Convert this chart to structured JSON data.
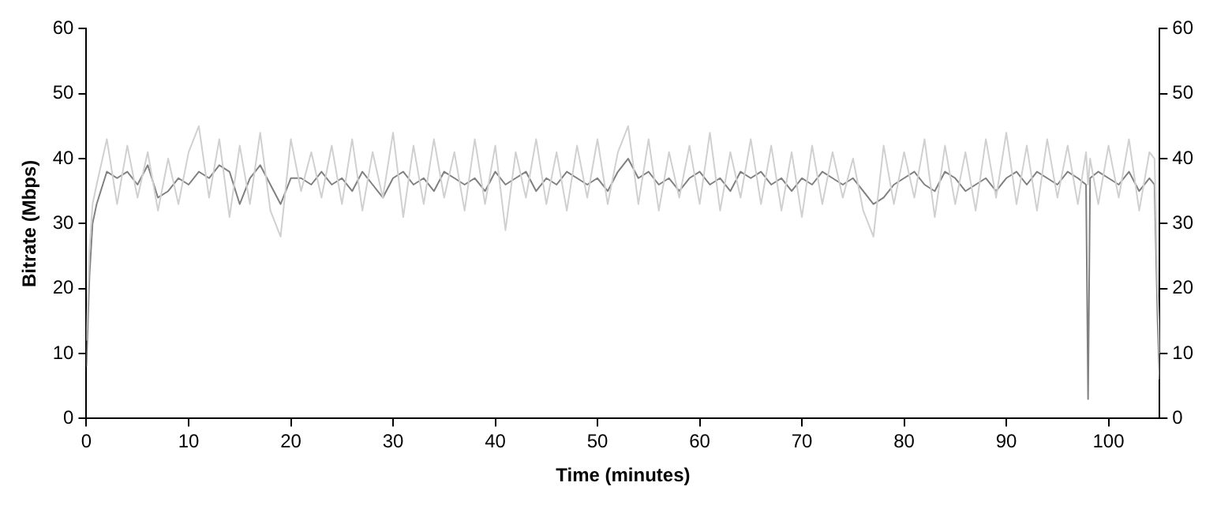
{
  "chart_data": {
    "type": "line",
    "xlabel": "Time (minutes)",
    "ylabel": "Bitrate (Mbps)",
    "x": [
      0,
      0.3,
      0.6,
      1,
      2,
      3,
      4,
      5,
      6,
      7,
      8,
      9,
      10,
      11,
      12,
      13,
      14,
      15,
      16,
      17,
      18,
      19,
      20,
      21,
      22,
      23,
      24,
      25,
      26,
      27,
      28,
      29,
      30,
      31,
      32,
      33,
      34,
      35,
      36,
      37,
      38,
      39,
      40,
      41,
      42,
      43,
      44,
      45,
      46,
      47,
      48,
      49,
      50,
      51,
      52,
      53,
      54,
      55,
      56,
      57,
      58,
      59,
      60,
      61,
      62,
      63,
      64,
      65,
      66,
      67,
      68,
      69,
      70,
      71,
      72,
      73,
      74,
      75,
      76,
      77,
      78,
      79,
      80,
      81,
      82,
      83,
      84,
      85,
      86,
      87,
      88,
      89,
      90,
      91,
      92,
      93,
      94,
      95,
      96,
      97,
      97.8,
      98,
      98.2,
      99,
      100,
      101,
      102,
      103,
      104,
      104.5,
      104.8,
      105
    ],
    "series": [
      {
        "color": "#d0d0d0",
        "values": [
          12,
          26,
          33,
          36,
          43,
          33,
          42,
          34,
          41,
          32,
          40,
          33,
          41,
          45,
          34,
          43,
          31,
          42,
          33,
          44,
          32,
          28,
          43,
          35,
          41,
          34,
          42,
          33,
          43,
          32,
          41,
          34,
          44,
          31,
          42,
          33,
          43,
          34,
          41,
          32,
          43,
          33,
          42,
          29,
          41,
          34,
          43,
          33,
          41,
          32,
          42,
          34,
          43,
          33,
          41,
          45,
          33,
          43,
          32,
          41,
          34,
          42,
          33,
          44,
          32,
          41,
          34,
          43,
          33,
          42,
          32,
          41,
          31,
          42,
          33,
          41,
          34,
          40,
          32,
          28,
          42,
          33,
          41,
          34,
          43,
          31,
          42,
          33,
          41,
          32,
          43,
          34,
          44,
          33,
          42,
          32,
          43,
          34,
          42,
          33,
          41,
          36,
          40,
          33,
          42,
          34,
          43,
          32,
          41,
          40,
          20,
          10
        ]
      },
      {
        "color": "#808080",
        "values": [
          8,
          22,
          30,
          33,
          38,
          37,
          38,
          36,
          39,
          34,
          35,
          37,
          36,
          38,
          37,
          39,
          38,
          33,
          37,
          39,
          36,
          33,
          37,
          37,
          36,
          38,
          36,
          37,
          35,
          38,
          36,
          34,
          37,
          38,
          36,
          37,
          35,
          38,
          37,
          36,
          37,
          35,
          38,
          36,
          37,
          38,
          35,
          37,
          36,
          38,
          37,
          36,
          37,
          35,
          38,
          40,
          37,
          38,
          36,
          37,
          35,
          37,
          38,
          36,
          37,
          35,
          38,
          37,
          38,
          36,
          37,
          35,
          37,
          36,
          38,
          37,
          36,
          37,
          35,
          33,
          34,
          36,
          37,
          38,
          36,
          35,
          38,
          37,
          35,
          36,
          37,
          35,
          37,
          38,
          36,
          38,
          37,
          36,
          38,
          37,
          36,
          3,
          37,
          38,
          37,
          36,
          38,
          35,
          37,
          36,
          15,
          6
        ]
      }
    ],
    "xlim": [
      0,
      105
    ],
    "xticks": [
      0,
      10,
      20,
      30,
      40,
      50,
      60,
      70,
      80,
      90,
      100
    ],
    "ylim": [
      0,
      60
    ],
    "yticks": [
      0,
      10,
      20,
      30,
      40,
      50,
      60
    ],
    "y2lim": [
      0,
      60
    ],
    "y2ticks": [
      0,
      10,
      20,
      30,
      40,
      50,
      60
    ],
    "grid": false,
    "legend": false,
    "marker": "none",
    "line_style": "solid"
  }
}
